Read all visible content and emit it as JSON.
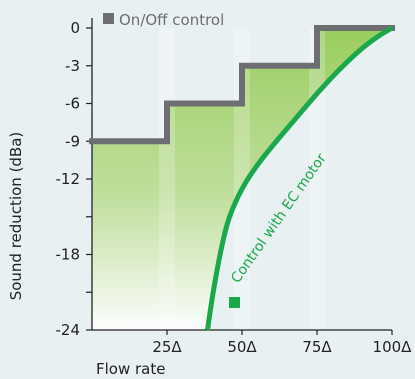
{
  "chart_data": {
    "type": "line",
    "title": "",
    "xlabel": "Flow rate",
    "ylabel": "Sound reduction (dBa)",
    "xlim": [
      0,
      100
    ],
    "ylim": [
      -24,
      0
    ],
    "x_ticks": [
      {
        "value": 25,
        "label": "25Δ"
      },
      {
        "value": 50,
        "label": "50Δ"
      },
      {
        "value": 75,
        "label": "75Δ"
      },
      {
        "value": 100,
        "label": "100Δ"
      }
    ],
    "y_ticks": [
      {
        "value": 0,
        "label": "0"
      },
      {
        "value": -3,
        "label": "-3"
      },
      {
        "value": -6,
        "label": "-6"
      },
      {
        "value": -9,
        "label": "-9"
      },
      {
        "value": -12,
        "label": "-12"
      },
      {
        "value": -18,
        "label": "-18"
      },
      {
        "value": -24,
        "label": "-24"
      }
    ],
    "series": [
      {
        "name": "On/Off control",
        "kind": "step",
        "color": "#6d6e71",
        "x": [
          0,
          25,
          25,
          50,
          50,
          75,
          75,
          100
        ],
        "y": [
          -9,
          -9,
          -6,
          -6,
          -3,
          -3,
          0,
          0
        ]
      },
      {
        "name": "Control with EC motor",
        "kind": "curve",
        "color": "#1aa84a",
        "x": [
          38.5,
          40,
          42,
          44,
          46,
          50,
          55,
          60,
          65,
          70,
          75,
          80,
          85,
          90,
          95,
          100
        ],
        "y": [
          -24,
          -21.5,
          -18.8,
          -16.5,
          -14.8,
          -12.7,
          -10.9,
          -9.4,
          -8.0,
          -6.6,
          -5.2,
          -3.9,
          -2.7,
          -1.6,
          -0.7,
          0
        ]
      }
    ],
    "legend_position": "top-left",
    "grid": false
  },
  "colors": {
    "background": "#e9f0f2",
    "fill_green": "#9acd5e",
    "axis": "#222222"
  }
}
